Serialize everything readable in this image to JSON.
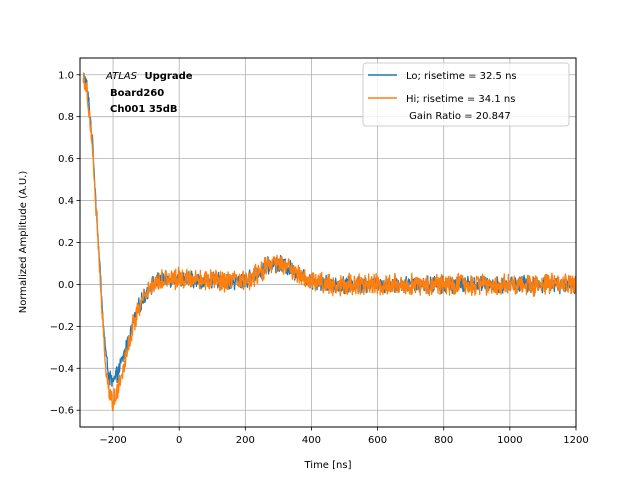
{
  "chart_data": {
    "type": "line",
    "xlabel": "Time [ns]",
    "ylabel": "Normalized Amplitude (A.U.)",
    "xlim": [
      -300,
      1200
    ],
    "ylim": [
      -0.68,
      1.08
    ],
    "xticks": [
      -200,
      0,
      200,
      400,
      600,
      800,
      1000,
      1200
    ],
    "yticks": [
      -0.6,
      -0.4,
      -0.2,
      0.0,
      0.2,
      0.4,
      0.6,
      0.8,
      1.0
    ],
    "xtick_labels": [
      "−200",
      "0",
      "200",
      "400",
      "600",
      "800",
      "1000",
      "1200"
    ],
    "ytick_labels": [
      "−0.6",
      "−0.4",
      "−0.2",
      "0.0",
      "0.2",
      "0.4",
      "0.6",
      "0.8",
      "1.0"
    ],
    "grid": true,
    "legend_position": "top-right",
    "annotation": {
      "italic": "ATLAS",
      "bold": "Upgrade",
      "line2": "Board260",
      "line3": "Ch001 35dB"
    },
    "legend_extra": " Gain Ratio = 20.847",
    "series": [
      {
        "name": "Lo; risetime = 32.5 ns",
        "color": "#1f77b4",
        "noise": 0.035,
        "x": [
          -290,
          -280,
          -270,
          -260,
          -250,
          -240,
          -230,
          -220,
          -210,
          -200,
          -190,
          -180,
          -170,
          -160,
          -150,
          -140,
          -130,
          -120,
          -110,
          -100,
          -90,
          -80,
          -60,
          -40,
          -20,
          0,
          50,
          100,
          150,
          200,
          220,
          240,
          260,
          280,
          300,
          320,
          340,
          360,
          380,
          400,
          450,
          500,
          600,
          700,
          800,
          900,
          1000,
          1100,
          1200
        ],
        "y": [
          1.0,
          0.95,
          0.82,
          0.62,
          0.35,
          0.08,
          -0.18,
          -0.36,
          -0.45,
          -0.47,
          -0.44,
          -0.4,
          -0.35,
          -0.3,
          -0.25,
          -0.19,
          -0.14,
          -0.1,
          -0.07,
          -0.04,
          -0.01,
          0.0,
          0.02,
          0.02,
          0.03,
          0.03,
          0.02,
          0.02,
          0.01,
          0.02,
          0.03,
          0.05,
          0.08,
          0.1,
          0.1,
          0.09,
          0.07,
          0.05,
          0.03,
          0.02,
          0.0,
          0.0,
          0.0,
          0.0,
          0.0,
          0.0,
          0.0,
          0.0,
          0.0
        ]
      },
      {
        "name": "Hi; risetime = 34.1 ns",
        "color": "#ff7f0e",
        "noise": 0.045,
        "x": [
          -290,
          -280,
          -270,
          -260,
          -250,
          -240,
          -230,
          -220,
          -210,
          -200,
          -190,
          -180,
          -170,
          -160,
          -150,
          -140,
          -130,
          -120,
          -110,
          -100,
          -90,
          -80,
          -60,
          -40,
          -20,
          0,
          50,
          100,
          150,
          200,
          220,
          240,
          260,
          280,
          300,
          320,
          340,
          360,
          380,
          400,
          450,
          500,
          600,
          700,
          800,
          900,
          1000,
          1100,
          1200
        ],
        "y": [
          1.0,
          0.93,
          0.8,
          0.6,
          0.32,
          0.05,
          -0.22,
          -0.42,
          -0.53,
          -0.56,
          -0.52,
          -0.46,
          -0.4,
          -0.33,
          -0.27,
          -0.2,
          -0.15,
          -0.1,
          -0.07,
          -0.04,
          -0.01,
          0.0,
          0.02,
          0.03,
          0.03,
          0.03,
          0.03,
          0.02,
          0.01,
          0.02,
          0.03,
          0.05,
          0.08,
          0.1,
          0.1,
          0.09,
          0.07,
          0.05,
          0.03,
          0.02,
          0.0,
          0.0,
          0.0,
          0.0,
          0.0,
          0.0,
          0.0,
          0.0,
          0.0
        ]
      }
    ]
  }
}
